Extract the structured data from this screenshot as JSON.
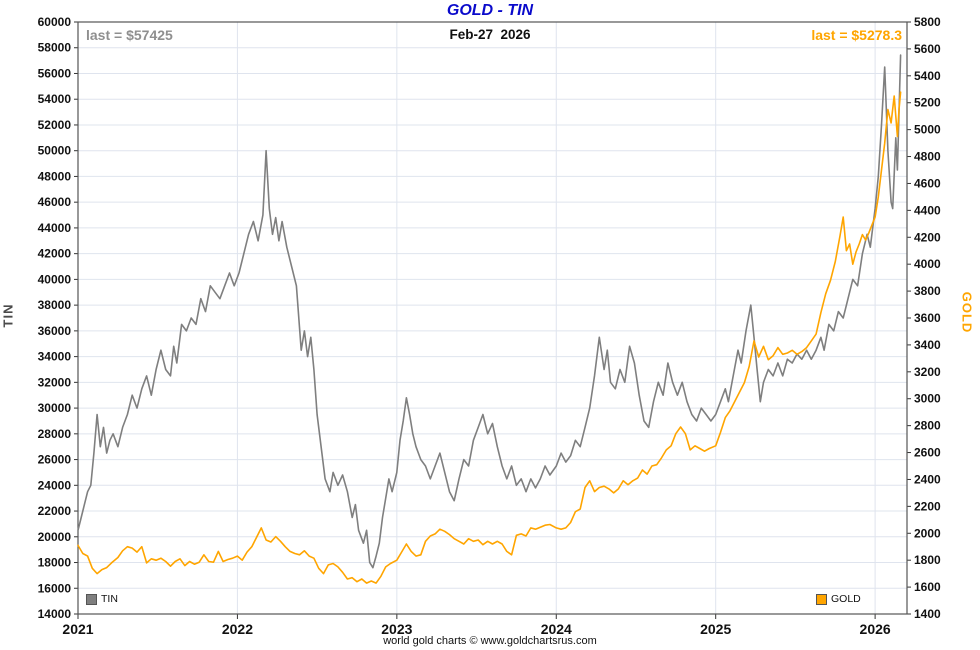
{
  "header": {
    "title": "GOLD - TIN",
    "date": "Feb-27  2026"
  },
  "annotations": {
    "tin_last": "last = $57425",
    "gold_last": "last = $5278.3"
  },
  "legend": {
    "tin": "TIN",
    "gold": "GOLD"
  },
  "footer": {
    "credit": "world gold charts © www.goldchartsrus.com"
  },
  "colors": {
    "title": "#0a0acb",
    "gold": "#FFA500",
    "tin": "#7f7f7f",
    "last_tin": "#8f8f8f",
    "axis_tin": "#4a4a4a",
    "grid": "#dfe4ee",
    "frame": "#555555"
  },
  "chart_data": {
    "type": "line",
    "title": "GOLD - TIN",
    "x_axis": {
      "min": 2021,
      "max": 2026.2,
      "ticks": [
        2021,
        2022,
        2023,
        2024,
        2025,
        2026
      ]
    },
    "left_axis": {
      "label": "TIN",
      "min": 14000,
      "max": 60000,
      "step": 2000
    },
    "right_axis": {
      "label": "GOLD",
      "min": 1400,
      "max": 5800,
      "step": 200
    },
    "grid": true,
    "legend_position": "inside-bottom",
    "series": [
      {
        "name": "TIN",
        "axis": "left",
        "color": "#7f7f7f",
        "x": [
          2021.0,
          2021.02,
          2021.04,
          2021.06,
          2021.08,
          2021.1,
          2021.12,
          2021.14,
          2021.16,
          2021.18,
          2021.2,
          2021.22,
          2021.25,
          2021.28,
          2021.31,
          2021.34,
          2021.37,
          2021.4,
          2021.43,
          2021.46,
          2021.49,
          2021.52,
          2021.55,
          2021.58,
          2021.6,
          2021.62,
          2021.65,
          2021.68,
          2021.71,
          2021.74,
          2021.77,
          2021.8,
          2021.83,
          2021.86,
          2021.89,
          2021.92,
          2021.95,
          2021.98,
          2022.01,
          2022.04,
          2022.07,
          2022.1,
          2022.13,
          2022.16,
          2022.18,
          2022.2,
          2022.22,
          2022.24,
          2022.26,
          2022.28,
          2022.31,
          2022.34,
          2022.37,
          2022.4,
          2022.42,
          2022.44,
          2022.46,
          2022.48,
          2022.5,
          2022.53,
          2022.55,
          2022.58,
          2022.6,
          2022.63,
          2022.66,
          2022.69,
          2022.72,
          2022.74,
          2022.76,
          2022.79,
          2022.81,
          2022.83,
          2022.85,
          2022.87,
          2022.89,
          2022.91,
          2022.93,
          2022.95,
          2022.97,
          2023.0,
          2023.02,
          2023.04,
          2023.06,
          2023.08,
          2023.1,
          2023.12,
          2023.15,
          2023.18,
          2023.21,
          2023.24,
          2023.27,
          2023.3,
          2023.33,
          2023.36,
          2023.39,
          2023.42,
          2023.45,
          2023.48,
          2023.51,
          2023.54,
          2023.57,
          2023.6,
          2023.63,
          2023.66,
          2023.69,
          2023.72,
          2023.75,
          2023.78,
          2023.81,
          2023.84,
          2023.87,
          2023.9,
          2023.93,
          2023.96,
          2024.0,
          2024.03,
          2024.06,
          2024.09,
          2024.12,
          2024.15,
          2024.18,
          2024.21,
          2024.24,
          2024.27,
          2024.3,
          2024.32,
          2024.34,
          2024.37,
          2024.4,
          2024.43,
          2024.46,
          2024.49,
          2024.52,
          2024.55,
          2024.58,
          2024.61,
          2024.64,
          2024.67,
          2024.7,
          2024.73,
          2024.76,
          2024.79,
          2024.82,
          2024.85,
          2024.88,
          2024.91,
          2024.94,
          2024.97,
          2025.0,
          2025.03,
          2025.06,
          2025.08,
          2025.11,
          2025.14,
          2025.16,
          2025.19,
          2025.22,
          2025.24,
          2025.26,
          2025.28,
          2025.3,
          2025.33,
          2025.36,
          2025.39,
          2025.42,
          2025.45,
          2025.48,
          2025.51,
          2025.54,
          2025.57,
          2025.6,
          2025.63,
          2025.66,
          2025.68,
          2025.71,
          2025.74,
          2025.77,
          2025.8,
          2025.83,
          2025.86,
          2025.89,
          2025.92,
          2025.95,
          2025.97,
          2026.0,
          2026.02,
          2026.04,
          2026.06,
          2026.08,
          2026.1,
          2026.11,
          2026.13,
          2026.14,
          2026.16
        ],
        "values": [
          20500,
          21500,
          22500,
          23500,
          24000,
          26500,
          29500,
          27000,
          28500,
          26500,
          27500,
          28000,
          27000,
          28500,
          29500,
          31000,
          30000,
          31500,
          32500,
          31000,
          33000,
          34500,
          33000,
          32500,
          34800,
          33500,
          36500,
          36000,
          37000,
          36500,
          38500,
          37500,
          39500,
          39000,
          38500,
          39500,
          40500,
          39500,
          40500,
          42000,
          43500,
          44500,
          43000,
          45000,
          50000,
          45500,
          43500,
          44800,
          43000,
          44500,
          42500,
          41000,
          39500,
          34500,
          36000,
          34000,
          35500,
          33000,
          29500,
          26500,
          24500,
          23500,
          25000,
          24000,
          24800,
          23500,
          21500,
          22500,
          20500,
          19500,
          20500,
          18000,
          17600,
          18500,
          19500,
          21500,
          23000,
          24500,
          23500,
          25000,
          27500,
          29000,
          30800,
          29500,
          28000,
          27000,
          26000,
          25500,
          24500,
          25500,
          26500,
          25000,
          23500,
          22800,
          24500,
          26000,
          25500,
          27500,
          28500,
          29500,
          28000,
          28800,
          27000,
          25500,
          24500,
          25500,
          24000,
          24500,
          23500,
          24500,
          23800,
          24500,
          25500,
          24800,
          25500,
          26500,
          25800,
          26300,
          27500,
          27000,
          28500,
          30000,
          32500,
          35500,
          33000,
          34500,
          32000,
          31500,
          33000,
          32000,
          34800,
          33500,
          31000,
          29000,
          28500,
          30500,
          32000,
          31000,
          33500,
          32000,
          31000,
          32000,
          30500,
          29500,
          29000,
          30000,
          29500,
          29000,
          29500,
          30500,
          31500,
          30500,
          32500,
          34500,
          33500,
          36000,
          38000,
          35500,
          33000,
          30500,
          32000,
          33000,
          32500,
          33500,
          32500,
          33800,
          33500,
          34200,
          33800,
          34500,
          33800,
          34500,
          35500,
          34500,
          36500,
          36000,
          37500,
          37000,
          38500,
          40000,
          39500,
          42000,
          43500,
          42500,
          45500,
          48000,
          52000,
          56500,
          50000,
          46000,
          45500,
          51000,
          48500,
          57425
        ],
        "last": 57425
      },
      {
        "name": "GOLD",
        "axis": "right",
        "color": "#FFA500",
        "x": [
          2021.0,
          2021.03,
          2021.06,
          2021.09,
          2021.12,
          2021.15,
          2021.18,
          2021.21,
          2021.25,
          2021.28,
          2021.31,
          2021.34,
          2021.37,
          2021.4,
          2021.43,
          2021.46,
          2021.49,
          2021.52,
          2021.55,
          2021.58,
          2021.61,
          2021.64,
          2021.67,
          2021.7,
          2021.73,
          2021.76,
          2021.79,
          2021.82,
          2021.85,
          2021.88,
          2021.91,
          2021.94,
          2021.97,
          2022.0,
          2022.03,
          2022.06,
          2022.09,
          2022.12,
          2022.15,
          2022.18,
          2022.21,
          2022.24,
          2022.27,
          2022.3,
          2022.33,
          2022.36,
          2022.39,
          2022.42,
          2022.45,
          2022.48,
          2022.51,
          2022.54,
          2022.57,
          2022.6,
          2022.63,
          2022.66,
          2022.69,
          2022.72,
          2022.75,
          2022.78,
          2022.81,
          2022.84,
          2022.87,
          2022.9,
          2022.93,
          2022.96,
          2023.0,
          2023.03,
          2023.06,
          2023.09,
          2023.12,
          2023.15,
          2023.18,
          2023.21,
          2023.24,
          2023.27,
          2023.3,
          2023.33,
          2023.36,
          2023.39,
          2023.42,
          2023.45,
          2023.48,
          2023.51,
          2023.54,
          2023.57,
          2023.6,
          2023.63,
          2023.66,
          2023.69,
          2023.72,
          2023.75,
          2023.78,
          2023.81,
          2023.84,
          2023.87,
          2023.9,
          2023.93,
          2023.96,
          2024.0,
          2024.03,
          2024.06,
          2024.09,
          2024.12,
          2024.15,
          2024.18,
          2024.21,
          2024.24,
          2024.27,
          2024.3,
          2024.33,
          2024.36,
          2024.39,
          2024.42,
          2024.45,
          2024.48,
          2024.51,
          2024.54,
          2024.57,
          2024.6,
          2024.63,
          2024.66,
          2024.69,
          2024.72,
          2024.75,
          2024.78,
          2024.81,
          2024.84,
          2024.87,
          2024.9,
          2024.93,
          2024.96,
          2025.0,
          2025.03,
          2025.06,
          2025.09,
          2025.12,
          2025.15,
          2025.18,
          2025.21,
          2025.24,
          2025.27,
          2025.3,
          2025.33,
          2025.36,
          2025.39,
          2025.42,
          2025.45,
          2025.48,
          2025.51,
          2025.54,
          2025.57,
          2025.6,
          2025.63,
          2025.66,
          2025.69,
          2025.72,
          2025.75,
          2025.78,
          2025.8,
          2025.82,
          2025.84,
          2025.86,
          2025.88,
          2025.9,
          2025.92,
          2025.94,
          2025.96,
          2026.0,
          2026.02,
          2026.04,
          2026.06,
          2026.08,
          2026.1,
          2026.12,
          2026.13,
          2026.14,
          2026.15,
          2026.16
        ],
        "values": [
          1910,
          1850,
          1830,
          1740,
          1700,
          1730,
          1745,
          1780,
          1820,
          1870,
          1900,
          1890,
          1860,
          1900,
          1780,
          1810,
          1800,
          1815,
          1790,
          1755,
          1790,
          1810,
          1760,
          1790,
          1770,
          1785,
          1840,
          1790,
          1785,
          1865,
          1790,
          1805,
          1815,
          1830,
          1800,
          1860,
          1900,
          1970,
          2040,
          1950,
          1935,
          1975,
          1940,
          1900,
          1865,
          1850,
          1840,
          1870,
          1830,
          1815,
          1740,
          1700,
          1765,
          1775,
          1750,
          1710,
          1660,
          1670,
          1640,
          1660,
          1630,
          1645,
          1630,
          1680,
          1750,
          1775,
          1800,
          1860,
          1920,
          1865,
          1830,
          1840,
          1940,
          1980,
          1995,
          2030,
          2015,
          1990,
          1960,
          1940,
          1920,
          1960,
          1940,
          1950,
          1915,
          1940,
          1920,
          1940,
          1920,
          1865,
          1840,
          1985,
          1995,
          1980,
          2040,
          2030,
          2045,
          2060,
          2065,
          2040,
          2030,
          2040,
          2080,
          2160,
          2180,
          2340,
          2390,
          2310,
          2340,
          2350,
          2330,
          2300,
          2330,
          2390,
          2360,
          2390,
          2410,
          2470,
          2440,
          2500,
          2510,
          2560,
          2620,
          2650,
          2740,
          2790,
          2740,
          2620,
          2650,
          2630,
          2610,
          2630,
          2650,
          2750,
          2860,
          2910,
          2980,
          3050,
          3120,
          3240,
          3430,
          3310,
          3390,
          3290,
          3320,
          3380,
          3330,
          3340,
          3360,
          3330,
          3350,
          3380,
          3430,
          3480,
          3640,
          3780,
          3880,
          4020,
          4210,
          4350,
          4100,
          4150,
          4000,
          4090,
          4150,
          4220,
          4180,
          4230,
          4350,
          4500,
          4700,
          4900,
          5150,
          5050,
          5250,
          5100,
          4950,
          5150,
          5278.3
        ],
        "last": 5278.3
      }
    ]
  }
}
